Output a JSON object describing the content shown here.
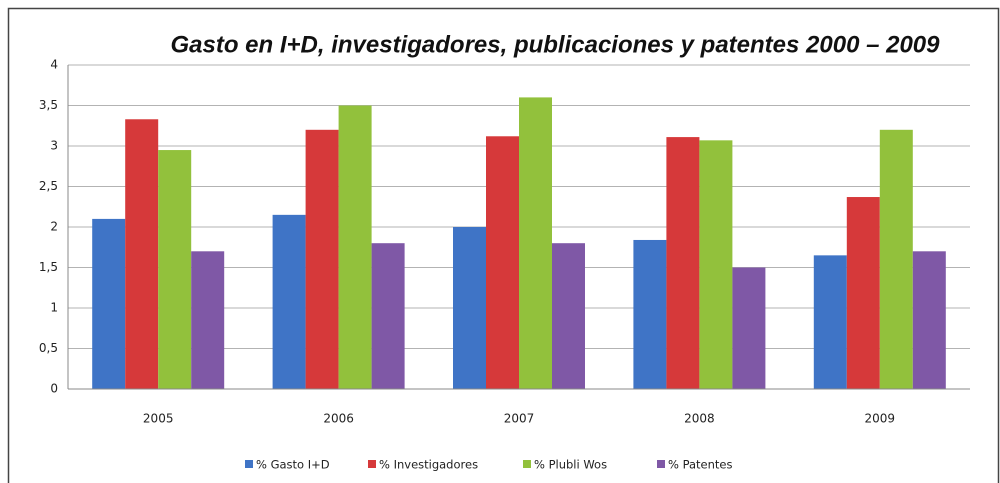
{
  "chart_data": {
    "type": "bar",
    "title": "Gasto en I+D, investigadores, publicaciones y patentes 2000 – 2009",
    "categories": [
      "2005",
      "2006",
      "2007",
      "2008",
      "2009"
    ],
    "series": [
      {
        "name": "% Gasto I+D",
        "color": "#3f74c6",
        "values": [
          2.1,
          2.15,
          2.0,
          1.84,
          1.65
        ]
      },
      {
        "name": "% Investigadores",
        "color": "#d6393a",
        "values": [
          3.33,
          3.2,
          3.12,
          3.11,
          2.37
        ]
      },
      {
        "name": "% Plubli Wos",
        "color": "#92c13c",
        "values": [
          2.95,
          3.5,
          3.6,
          3.07,
          3.2
        ]
      },
      {
        "name": "% Patentes",
        "color": "#7f58a6",
        "values": [
          1.7,
          1.8,
          1.8,
          1.5,
          1.7
        ]
      }
    ],
    "ylim": [
      0,
      4
    ],
    "yticks": [
      0,
      {
        "value": 0.5,
        "label": "0,5"
      },
      1,
      {
        "value": 1.5,
        "label": "1,5"
      },
      2,
      {
        "value": 2.5,
        "label": "2,5"
      },
      3,
      {
        "value": 3.5,
        "label": "3,5"
      },
      4
    ],
    "grid": true,
    "legend": "bottom"
  }
}
